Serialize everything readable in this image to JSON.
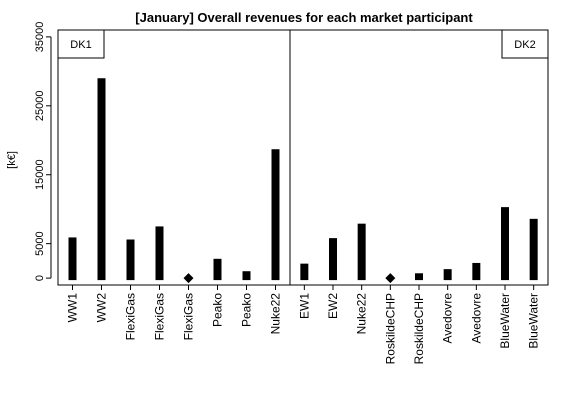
{
  "chart_data": {
    "type": "bar",
    "title": "[January] Overall revenues for each market participant",
    "ylabel": "[k€]",
    "xlabel": "",
    "ylim": [
      -1000,
      36000
    ],
    "yticks": [
      0,
      5000,
      15000,
      25000,
      35000
    ],
    "grid": false,
    "panels": [
      {
        "name": "DK1",
        "categories": [
          "WW1",
          "WW2",
          "FlexiGas",
          "FlexiGas",
          "FlexiGas",
          "Peako",
          "Peako",
          "Nuke22"
        ],
        "values": [
          5900,
          29000,
          5600,
          7500,
          0,
          2800,
          1000,
          18700
        ],
        "markers": [
          false,
          false,
          false,
          false,
          true,
          false,
          false,
          false
        ]
      },
      {
        "name": "DK2",
        "categories": [
          "EW1",
          "EW2",
          "Nuke22",
          "RoskildeCHP",
          "RoskildeCHP",
          "Avedovre",
          "Avedovre",
          "BlueWater",
          "BlueWater"
        ],
        "values": [
          2100,
          5800,
          7900,
          0,
          700,
          1300,
          2200,
          10300,
          8600
        ],
        "markers": [
          false,
          false,
          false,
          true,
          false,
          false,
          false,
          false,
          false
        ]
      }
    ],
    "colors": {
      "bar": "#000000",
      "frame": "#000000",
      "background": "#ffffff"
    }
  }
}
